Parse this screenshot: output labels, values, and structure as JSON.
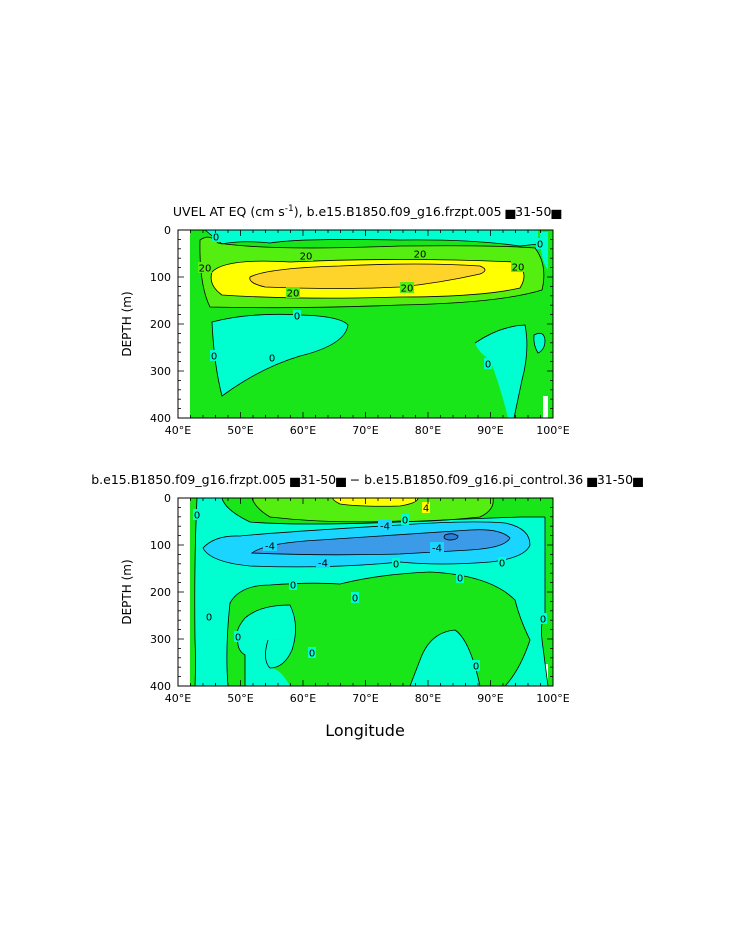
{
  "colors": {
    "green": "#19e619",
    "cyan": "#00ffd0",
    "light_cyan": "#1ad5ff",
    "blue": "#3c9be8",
    "light_green": "#55ee11",
    "yellow": "#ffff00",
    "gold": "#ffd42a",
    "white": "#ffffff"
  },
  "chart_data": [
    {
      "type": "contour",
      "title_prefix": "UVEL AT EQ (cm s",
      "title_exp": "-1",
      "title_suffix": "), b.e15.B1850.f09_g16.frzpt.005 ▅31-50▅",
      "ylabel": "DEPTH (m)",
      "xlim": [
        40,
        100
      ],
      "ylim": [
        400,
        0
      ],
      "x_ticks": [
        "40°E",
        "50°E",
        "60°E",
        "70°E",
        "80°E",
        "90°E",
        "100°E"
      ],
      "y_ticks": [
        "0",
        "100",
        "200",
        "300",
        "400"
      ],
      "contour_labels": [
        "20",
        "20",
        "20",
        "20",
        "20",
        "20",
        "0",
        "0",
        "0",
        "0",
        "0",
        "0"
      ]
    },
    {
      "type": "contour",
      "title": "b.e15.B1850.f09_g16.frzpt.005 ▅31-50▅ − b.e15.B1850.f09_g16.pi_control.36 ▅31-50▅",
      "ylabel": "DEPTH (m)",
      "xlabel": "Longitude",
      "xlim": [
        40,
        100
      ],
      "ylim": [
        400,
        0
      ],
      "x_ticks": [
        "40°E",
        "50°E",
        "60°E",
        "70°E",
        "80°E",
        "90°E",
        "100°E"
      ],
      "y_ticks": [
        "0",
        "100",
        "200",
        "300",
        "400"
      ],
      "contour_labels": [
        "4",
        "0",
        "-4",
        "-4",
        "-4",
        "-4",
        "0",
        "0",
        "0",
        "0",
        "0",
        "0",
        "0",
        "0",
        "0",
        "0",
        "0"
      ]
    }
  ]
}
